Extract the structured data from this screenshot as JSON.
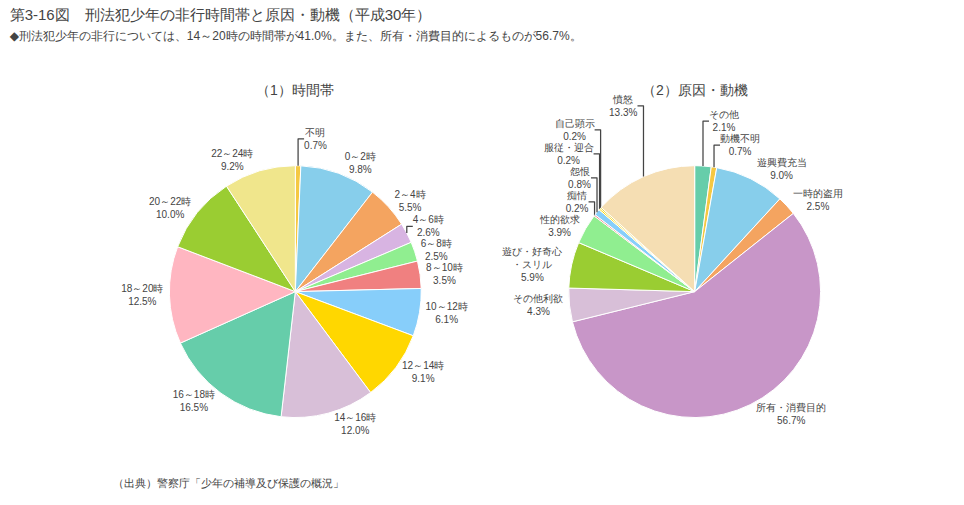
{
  "title": "第3-16図　刑法犯少年の非行時間帯と原因・動機（平成30年）",
  "subtitle": "◆刑法犯少年の非行については、14～20時の時間帯が41.0%。また、所有・消費目的によるものが56.7%。",
  "annotations": [
    "（出典）警察庁「少年の補導及び保護の概況」"
  ],
  "chart_data": [
    {
      "type": "pie",
      "title": "（1）時間帯",
      "categories": [
        "不明",
        "0～2時",
        "2～4時",
        "4～6時",
        "6～8時",
        "8～10時",
        "10～12時",
        "12～14時",
        "14～16時",
        "16～18時",
        "18～20時",
        "20～22時",
        "22～24時"
      ],
      "values": [
        0.7,
        9.8,
        5.5,
        2.6,
        2.5,
        3.5,
        6.1,
        9.1,
        12.0,
        16.5,
        12.5,
        10.0,
        9.2
      ],
      "value_labels": [
        "0.7%",
        "9.8%",
        "5.5%",
        "2.6%",
        "2.5%",
        "3.5%",
        "6.1%",
        "9.1%",
        "12.0%",
        "16.5%",
        "12.5%",
        "10.0%",
        "9.2%"
      ],
      "colors": [
        "#f5c842",
        "#87ceeb",
        "#f4a460",
        "#d8b4e2",
        "#90ee90",
        "#f08080",
        "#87cefa",
        "#ffd700",
        "#d8bfd8",
        "#66cdaa",
        "#ffb6c1",
        "#9acd32",
        "#f0e68c"
      ],
      "data_labels": true
    },
    {
      "type": "pie",
      "title": "（2）原因・動機",
      "categories": [
        "その他",
        "動機不明",
        "遊興費充当",
        "一時的盗用",
        "所有・消費目的",
        "その他利欲",
        "遊び・好奇心\n・スリル",
        "性的欲求",
        "痴情",
        "怨恨",
        "服従・迎合",
        "自己顕示",
        "憤怒"
      ],
      "values": [
        2.1,
        0.7,
        9.0,
        2.5,
        56.7,
        4.3,
        5.9,
        3.9,
        0.2,
        0.8,
        0.2,
        0.2,
        13.3
      ],
      "value_labels": [
        "2.1%",
        "0.7%",
        "9.0%",
        "2.5%",
        "56.7%",
        "4.3%",
        "5.9%",
        "3.9%",
        "0.2%",
        "0.8%",
        "0.2%",
        "0.2%",
        "13.3%"
      ],
      "colors": [
        "#66cdaa",
        "#f5c842",
        "#87ceeb",
        "#f4a460",
        "#c896c8",
        "#d8bfd8",
        "#9acd32",
        "#90ee90",
        "#f08080",
        "#87cefa",
        "#ffd700",
        "#e8d44d",
        "#f5deb3"
      ],
      "data_labels": true
    }
  ]
}
